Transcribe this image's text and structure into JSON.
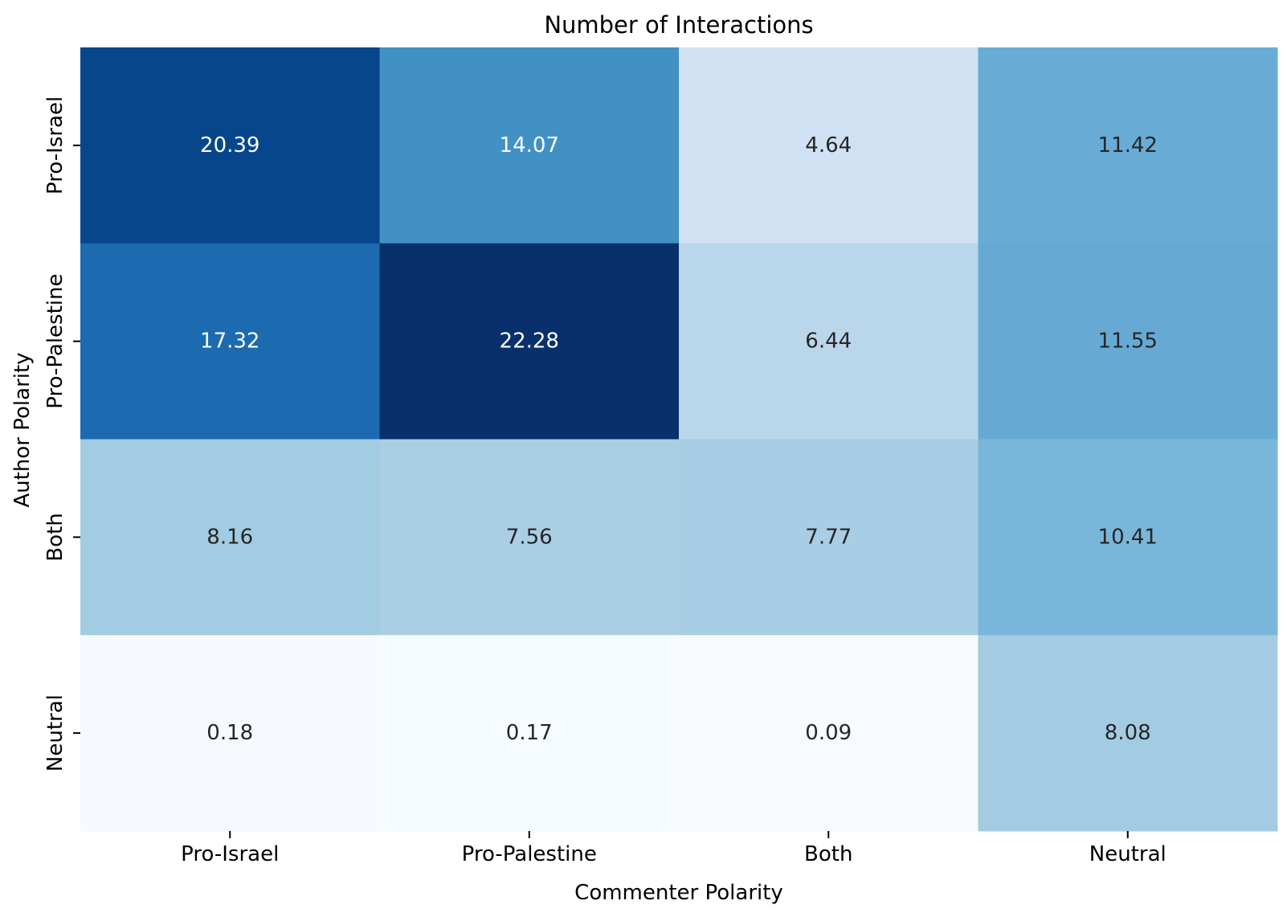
{
  "chart_data": {
    "type": "heatmap",
    "title": "Number of Interactions",
    "xlabel": "Commenter Polarity",
    "ylabel": "Author Polarity",
    "x_categories": [
      "Pro-Israel",
      "Pro-Palestine",
      "Both",
      "Neutral"
    ],
    "y_categories": [
      "Pro-Israel",
      "Pro-Palestine",
      "Both",
      "Neutral"
    ],
    "values": [
      [
        20.39,
        14.07,
        4.64,
        11.42
      ],
      [
        17.32,
        22.28,
        6.44,
        11.55
      ],
      [
        8.16,
        7.56,
        7.77,
        10.41
      ],
      [
        0.18,
        0.17,
        0.09,
        8.08
      ]
    ],
    "value_range": [
      0.09,
      22.28
    ],
    "colormap": "Blues",
    "annotations": true,
    "colorbar": false,
    "grid": false
  }
}
